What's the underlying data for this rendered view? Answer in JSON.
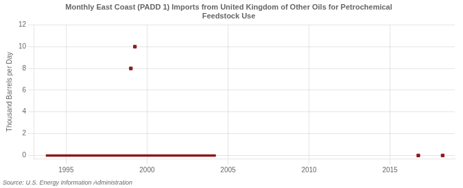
{
  "chart_data": {
    "type": "line",
    "title": "Monthly East Coast (PADD 1) Imports from United Kingdom of Other Oils for Petrochemical\nFeedstock Use",
    "ylabel": "Thousand Barrels per Day",
    "source": "Source: U.S. Energy Information Administration",
    "color": "#8b1a1a",
    "grid": true,
    "xlim": [
      1993.0,
      2019.0
    ],
    "ylim": [
      -0.3,
      12
    ],
    "xticks": [
      1995,
      2000,
      2005,
      2010,
      2015
    ],
    "yticks": [
      0,
      2,
      4,
      6,
      8,
      10,
      12
    ],
    "series": [
      {
        "type": "line",
        "line_style": "solid",
        "x": [
          1993.75,
          2004.25
        ],
        "values": [
          0,
          0
        ]
      },
      {
        "type": "scatter",
        "marker": "square",
        "x": [
          1999.0,
          1999.25
        ],
        "values": [
          8.0,
          10.0
        ]
      },
      {
        "type": "scatter",
        "marker": "square",
        "x": [
          2016.75,
          2018.25
        ],
        "values": [
          0.0,
          0.0
        ]
      }
    ]
  }
}
